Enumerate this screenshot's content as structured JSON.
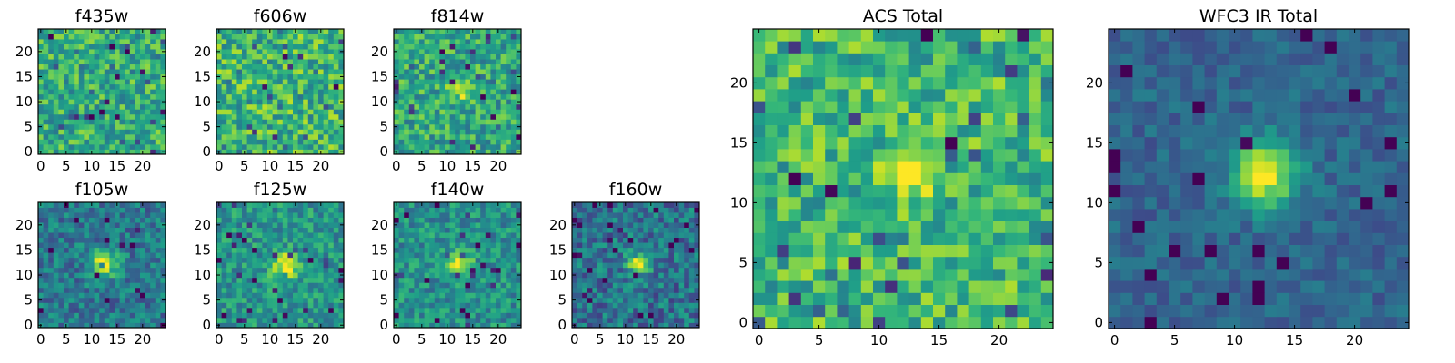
{
  "chart_data": [
    {
      "type": "heatmap",
      "id": "f435w",
      "title": "f435w",
      "xticks": [
        "0",
        "5",
        "10",
        "15",
        "20"
      ],
      "yticks": [
        "0",
        "5",
        "10",
        "15",
        "20"
      ],
      "xlim": [
        0,
        24
      ],
      "ylim": [
        0,
        24
      ],
      "grid_size": 25,
      "colormap": "viridis",
      "background_level": 0.62,
      "noise": 0.22,
      "source": null,
      "seed": 11
    },
    {
      "type": "heatmap",
      "id": "f606w",
      "title": "f606w",
      "xticks": [
        "0",
        "5",
        "10",
        "15",
        "20"
      ],
      "yticks": [
        "0",
        "5",
        "10",
        "15",
        "20"
      ],
      "xlim": [
        0,
        24
      ],
      "ylim": [
        0,
        24
      ],
      "grid_size": 25,
      "colormap": "viridis",
      "background_level": 0.66,
      "noise": 0.24,
      "source": null,
      "seed": 23
    },
    {
      "type": "heatmap",
      "id": "f814w",
      "title": "f814w",
      "xticks": [
        "0",
        "5",
        "10",
        "15",
        "20"
      ],
      "yticks": [
        "0",
        "5",
        "10",
        "15",
        "20"
      ],
      "xlim": [
        0,
        24
      ],
      "ylim": [
        0,
        24
      ],
      "grid_size": 25,
      "colormap": "viridis",
      "background_level": 0.6,
      "noise": 0.22,
      "source": {
        "x": 12.5,
        "y": 12.5,
        "sigma": 1.3,
        "amplitude": 0.45
      },
      "seed": 37
    },
    {
      "type": "heatmap",
      "id": "f105w",
      "title": "f105w",
      "xticks": [
        "0",
        "5",
        "10",
        "15",
        "20"
      ],
      "yticks": [
        "0",
        "5",
        "10",
        "15",
        "20"
      ],
      "xlim": [
        0,
        24
      ],
      "ylim": [
        0,
        24
      ],
      "grid_size": 25,
      "colormap": "viridis",
      "background_level": 0.4,
      "noise": 0.18,
      "source": {
        "x": 12.5,
        "y": 12.5,
        "sigma": 1.7,
        "amplitude": 0.65
      },
      "seed": 41
    },
    {
      "type": "heatmap",
      "id": "f125w",
      "title": "f125w",
      "xticks": [
        "0",
        "5",
        "10",
        "15",
        "20"
      ],
      "yticks": [
        "0",
        "5",
        "10",
        "15",
        "20"
      ],
      "xlim": [
        0,
        24
      ],
      "ylim": [
        0,
        24
      ],
      "grid_size": 25,
      "colormap": "viridis",
      "background_level": 0.52,
      "noise": 0.18,
      "source": {
        "x": 13,
        "y": 12,
        "sigma": 1.8,
        "amplitude": 0.5
      },
      "seed": 53
    },
    {
      "type": "heatmap",
      "id": "f140w",
      "title": "f140w",
      "xticks": [
        "0",
        "5",
        "10",
        "15",
        "20"
      ],
      "yticks": [
        "0",
        "5",
        "10",
        "15",
        "20"
      ],
      "xlim": [
        0,
        24
      ],
      "ylim": [
        0,
        24
      ],
      "grid_size": 25,
      "colormap": "viridis",
      "background_level": 0.5,
      "noise": 0.18,
      "source": {
        "x": 12.5,
        "y": 12.5,
        "sigma": 1.6,
        "amplitude": 0.5
      },
      "seed": 67
    },
    {
      "type": "heatmap",
      "id": "f160w",
      "title": "f160w",
      "xticks": [
        "0",
        "5",
        "10",
        "15",
        "20"
      ],
      "yticks": [
        "0",
        "5",
        "10",
        "15",
        "20"
      ],
      "xlim": [
        0,
        24
      ],
      "ylim": [
        0,
        24
      ],
      "grid_size": 25,
      "colormap": "viridis",
      "background_level": 0.38,
      "noise": 0.2,
      "source": {
        "x": 12.5,
        "y": 12.5,
        "sigma": 1.5,
        "amplitude": 0.65
      },
      "seed": 79
    },
    {
      "type": "heatmap",
      "id": "acs-total",
      "title": "ACS Total",
      "xticks": [
        "0",
        "5",
        "10",
        "15",
        "20"
      ],
      "yticks": [
        "0",
        "5",
        "10",
        "15",
        "20"
      ],
      "xlim": [
        0,
        24
      ],
      "ylim": [
        0,
        24
      ],
      "grid_size": 25,
      "colormap": "viridis",
      "background_level": 0.66,
      "noise": 0.22,
      "source": {
        "x": 12.5,
        "y": 12.5,
        "sigma": 1.3,
        "amplitude": 0.45
      },
      "seed": 91
    },
    {
      "type": "heatmap",
      "id": "wfc3-ir-total",
      "title": "WFC3 IR Total",
      "xticks": [
        "0",
        "5",
        "10",
        "15",
        "20"
      ],
      "yticks": [
        "0",
        "5",
        "10",
        "15",
        "20"
      ],
      "xlim": [
        0,
        24
      ],
      "ylim": [
        0,
        24
      ],
      "grid_size": 25,
      "colormap": "viridis",
      "background_level": 0.33,
      "noise": 0.1,
      "source": {
        "x": 12.5,
        "y": 12.5,
        "sigma": 1.9,
        "amplitude": 0.7
      },
      "seed": 103
    }
  ],
  "colors": {
    "viridis": [
      "#440154",
      "#482878",
      "#3e4989",
      "#31688e",
      "#26828e",
      "#1f9e89",
      "#35b779",
      "#6ece58",
      "#b5de2b",
      "#fde725"
    ]
  }
}
